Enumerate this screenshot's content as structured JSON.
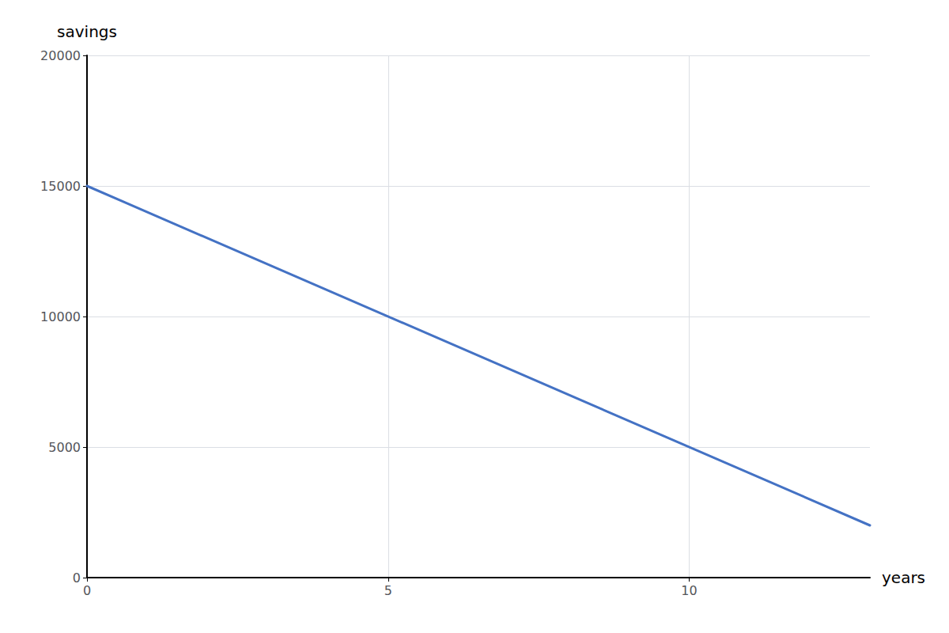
{
  "chart_data": {
    "type": "line",
    "x": [
      0,
      13
    ],
    "values": [
      15000,
      2000
    ],
    "color": "#4472C4",
    "xlim": [
      0,
      13
    ],
    "ylim": [
      0,
      20000
    ],
    "xticks": [
      0,
      5,
      10
    ],
    "yticks": [
      0,
      5000,
      10000,
      15000,
      20000
    ],
    "xlabel": "years",
    "ylabel": "savings",
    "grid": true
  }
}
